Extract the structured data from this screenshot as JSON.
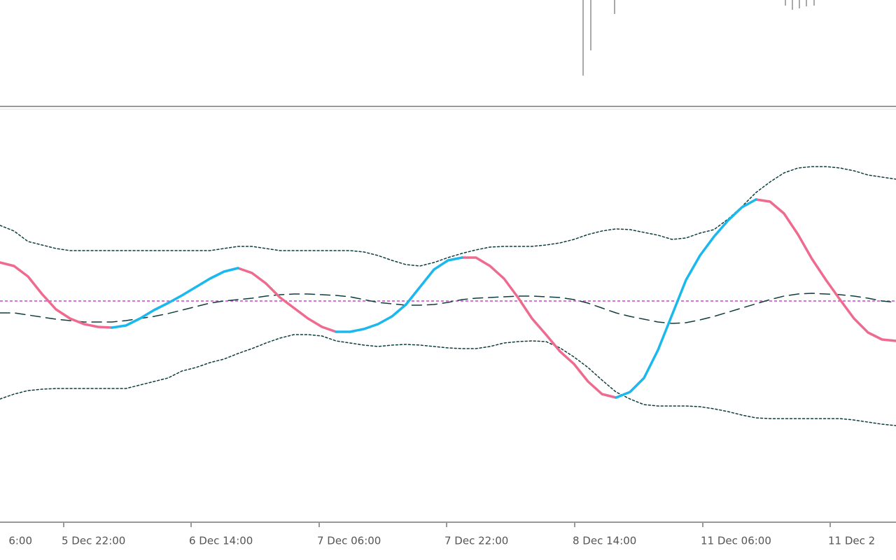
{
  "chart_data": {
    "type": "line",
    "x": [
      0,
      1,
      2,
      3,
      4,
      5,
      6,
      7,
      8,
      9,
      10,
      11,
      12,
      13,
      14,
      15,
      16,
      17,
      18,
      19,
      20,
      21,
      22,
      23,
      24,
      25,
      26,
      27,
      28,
      29,
      30,
      31,
      32,
      33,
      34,
      35,
      36,
      37,
      38,
      39,
      40,
      41,
      42,
      43,
      44,
      45,
      46,
      47,
      48,
      49,
      50,
      51,
      52,
      53,
      54,
      55,
      56,
      57,
      58,
      59,
      60,
      61,
      62,
      63,
      64
    ],
    "xlim": [
      0,
      64
    ],
    "xticks": [
      {
        "value": -4.55,
        "label": "6:00"
      },
      {
        "value": 4.55,
        "label": "5 Dec 22:00"
      },
      {
        "value": 13.65,
        "label": "6 Dec 14:00"
      },
      {
        "value": 22.8,
        "label": "7 Dec 06:00"
      },
      {
        "value": 31.9,
        "label": "7 Dec 22:00"
      },
      {
        "value": 41.05,
        "label": "8 Dec 14:00"
      },
      {
        "value": 50.2,
        "label": "11 Dec 06:00"
      },
      {
        "value": 59.3,
        "label": "11 Dec 2"
      }
    ],
    "ylim": [
      -157.5,
      136.5
    ],
    "level": {
      "value": 0,
      "color": "#cc44cc"
    },
    "series": [
      {
        "color": "#0e3d3d",
        "dash": "dotted",
        "width": 1.5,
        "values": [
          54,
          50,
          42.5,
          40,
          37.5,
          36,
          36,
          36,
          36,
          36,
          36,
          36,
          36,
          36,
          36,
          36,
          37.5,
          39,
          39,
          37.5,
          36,
          36,
          36,
          36,
          36,
          36,
          35,
          32.5,
          29,
          26,
          25,
          27.5,
          31,
          34,
          36.5,
          38.5,
          39,
          39,
          39,
          40,
          41.5,
          44,
          47.5,
          50,
          51.5,
          51,
          49,
          47,
          44,
          45,
          48.5,
          51,
          58.5,
          67.5,
          77.5,
          85,
          91.5,
          95,
          96,
          96,
          95,
          93,
          90,
          88.5,
          87
        ]
      },
      {
        "color": "#0e3d3d",
        "dash": "dotted",
        "width": 1.5,
        "values": [
          -70,
          -66.5,
          -64,
          -63,
          -62.5,
          -62.5,
          -62.5,
          -62.5,
          -62.5,
          -62.5,
          -60,
          -57.5,
          -55,
          -50,
          -47.5,
          -44,
          -41.5,
          -37.5,
          -34,
          -30,
          -26.5,
          -24,
          -24,
          -25,
          -28.5,
          -30,
          -31.5,
          -32.5,
          -31.5,
          -31,
          -31.5,
          -32.5,
          -33.5,
          -34,
          -34,
          -32.5,
          -30,
          -29,
          -28.5,
          -29,
          -33.5,
          -40,
          -47.5,
          -56.5,
          -65,
          -70,
          -74,
          -75,
          -75,
          -75,
          -75.5,
          -77,
          -79,
          -81.5,
          -83.5,
          -84,
          -84,
          -84,
          -84,
          -84,
          -84,
          -85,
          -86.5,
          -88,
          -89
        ]
      },
      {
        "color": "#0e3d3d",
        "dash": "dashed",
        "width": 1.5,
        "values": [
          -8.5,
          -8.5,
          -10,
          -11.5,
          -13,
          -14,
          -15,
          -15,
          -15,
          -14,
          -12.5,
          -11,
          -9,
          -6.5,
          -4,
          -1.5,
          0,
          1,
          2,
          3.5,
          4.5,
          5,
          5,
          4.5,
          4,
          3,
          1,
          -1,
          -2,
          -3,
          -3,
          -2.5,
          -1,
          1,
          2,
          2.5,
          3,
          3.5,
          3.5,
          3,
          2.5,
          1,
          -1.5,
          -5,
          -8.5,
          -11,
          -13,
          -15,
          -16,
          -15.5,
          -13.5,
          -11,
          -8,
          -5,
          -2,
          1,
          3.5,
          5,
          5.5,
          5,
          4.5,
          3.5,
          2,
          0,
          -1
        ]
      },
      {
        "color": "#ee6a8f",
        "dash": "solid",
        "width": 3.5,
        "values": [
          27.5,
          25,
          17.5,
          5,
          -6,
          -12.5,
          -16.5,
          -18.5,
          -19,
          null,
          null,
          null,
          null,
          null,
          null,
          null,
          null,
          23.5,
          20,
          12.5,
          2.5,
          -5,
          -12.5,
          -18.5,
          -22,
          null,
          null,
          null,
          null,
          null,
          null,
          null,
          null,
          31,
          31,
          25,
          16,
          2.5,
          -12.5,
          -24,
          -36,
          -45,
          -57.5,
          -66.5,
          -69,
          null,
          null,
          null,
          null,
          null,
          null,
          null,
          null,
          null,
          72.5,
          71,
          62.5,
          47.5,
          30,
          15,
          1,
          -12.5,
          -22.5,
          -27.5,
          -28.5
        ]
      },
      {
        "color": "#1ab8ee",
        "dash": "solid",
        "width": 3.5,
        "values": [
          null,
          null,
          null,
          null,
          null,
          null,
          null,
          null,
          -19,
          -17.5,
          -12.5,
          -6.5,
          -1.5,
          4,
          10,
          16,
          21,
          23.5,
          null,
          null,
          null,
          null,
          null,
          null,
          -22,
          -22,
          -20,
          -16.5,
          -11,
          -2.5,
          10,
          22.5,
          29,
          31,
          null,
          null,
          null,
          null,
          null,
          null,
          null,
          null,
          null,
          null,
          -69,
          -65,
          -55,
          -35,
          -10,
          15,
          32.5,
          46,
          57.5,
          67,
          72.5,
          null,
          null,
          null,
          null,
          null,
          null,
          null,
          null,
          null,
          null
        ]
      }
    ]
  }
}
